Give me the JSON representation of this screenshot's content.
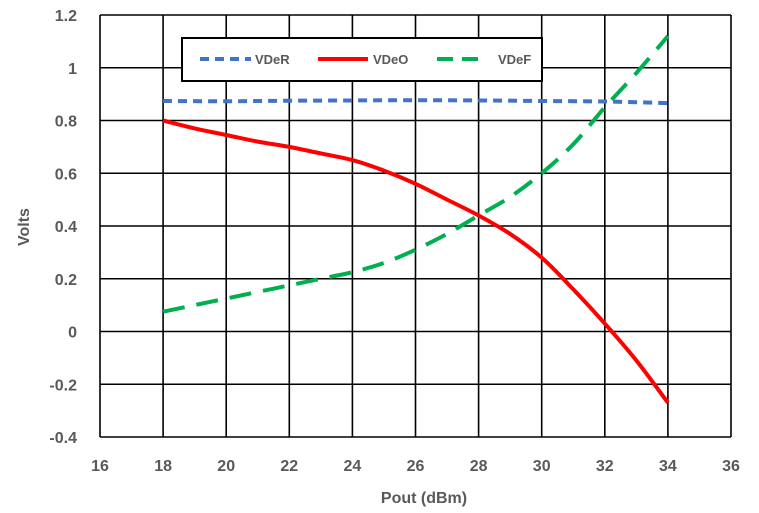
{
  "chart_data": {
    "type": "line",
    "title": "",
    "xlabel": "Pout (dBm)",
    "ylabel": "Volts",
    "xlim": [
      16,
      36
    ],
    "ylim": [
      -0.4,
      1.2
    ],
    "x_ticks": [
      16,
      18,
      20,
      22,
      24,
      26,
      28,
      30,
      32,
      34,
      36
    ],
    "y_ticks": [
      -0.4,
      -0.2,
      0,
      0.2,
      0.4,
      0.6,
      0.8,
      1,
      1.2
    ],
    "x_tick_labels": [
      "16",
      "18",
      "20",
      "22",
      "24",
      "26",
      "28",
      "30",
      "32",
      "34",
      "36"
    ],
    "y_tick_labels": [
      "-0.4",
      "-0.2",
      "0",
      "0.2",
      "0.4",
      "0.6",
      "0.8",
      "1",
      "1.2"
    ],
    "grid": true,
    "legend_position": "top",
    "series": [
      {
        "name": "VDeR",
        "color": "#4472C4",
        "dash": "short-dash",
        "x": [
          18,
          20,
          22,
          24,
          26,
          28,
          30,
          32,
          34
        ],
        "y": [
          0.874,
          0.873,
          0.875,
          0.876,
          0.877,
          0.876,
          0.874,
          0.872,
          0.866
        ]
      },
      {
        "name": "VDeO",
        "color": "#FF0000",
        "dash": "solid",
        "x": [
          18,
          19,
          20,
          21,
          22,
          23,
          24,
          25,
          26,
          27,
          28,
          29,
          30,
          31,
          32,
          33,
          34
        ],
        "y": [
          0.8,
          0.77,
          0.745,
          0.72,
          0.7,
          0.675,
          0.65,
          0.61,
          0.56,
          0.5,
          0.44,
          0.37,
          0.28,
          0.16,
          0.03,
          -0.11,
          -0.27
        ]
      },
      {
        "name": "VDeF",
        "color": "#00B050",
        "dash": "long-dash",
        "x": [
          18,
          19,
          20,
          21,
          22,
          23,
          24,
          25,
          26,
          27,
          28,
          29,
          30,
          31,
          32,
          33,
          34
        ],
        "y": [
          0.075,
          0.1,
          0.125,
          0.15,
          0.175,
          0.2,
          0.225,
          0.26,
          0.31,
          0.37,
          0.44,
          0.51,
          0.6,
          0.71,
          0.85,
          0.98,
          1.12
        ]
      }
    ]
  }
}
